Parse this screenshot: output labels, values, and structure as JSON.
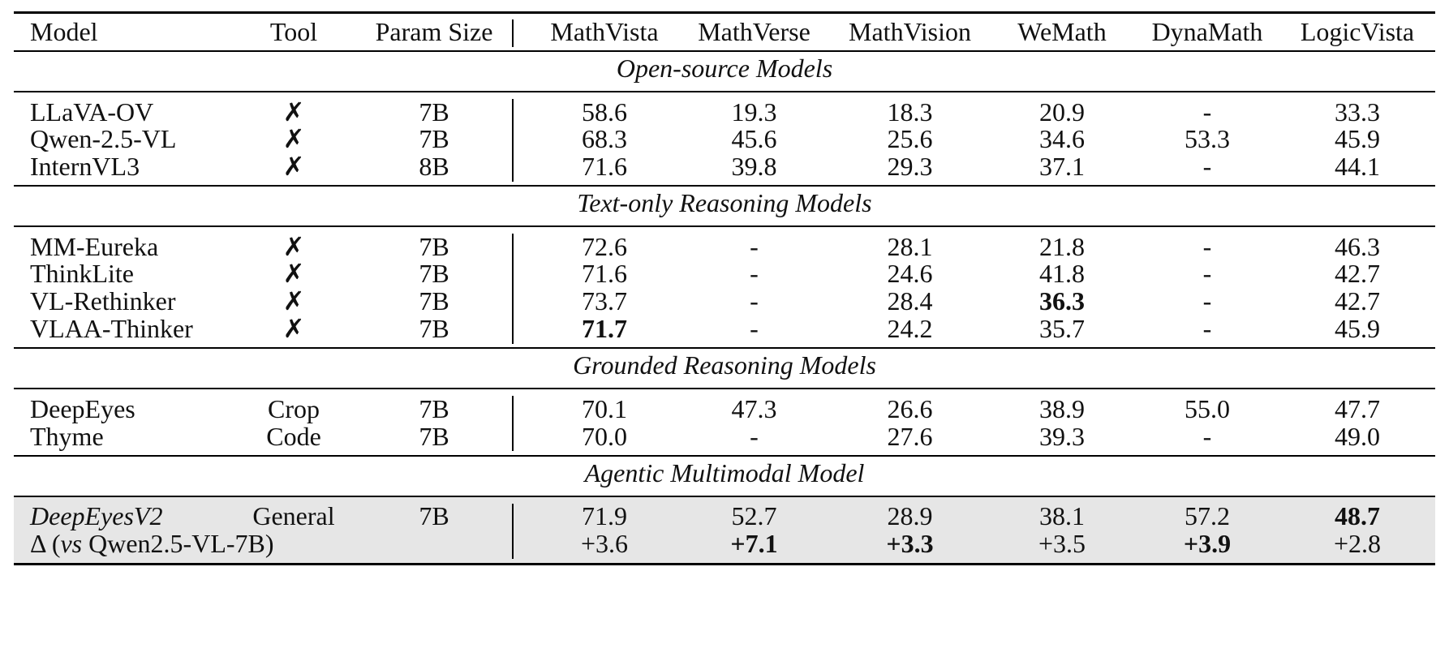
{
  "header": {
    "model": "Model",
    "tool": "Tool",
    "param": "Param Size",
    "mathvista": "MathVista",
    "mathverse": "MathVerse",
    "mathvision": "MathVision",
    "wemath": "WeMath",
    "dynamath": "DynaMath",
    "logicvista": "LogicVista"
  },
  "sections": [
    {
      "title": "Open-source Models",
      "rows": [
        {
          "model": "LLaVA-OV",
          "tool": "✗",
          "param": "7B",
          "mathvista": "58.6",
          "mathverse": "19.3",
          "mathvision": "18.3",
          "wemath": "20.9",
          "dynamath": "-",
          "logicvista": "33.3"
        },
        {
          "model": "Qwen-2.5-VL",
          "tool": "✗",
          "param": "7B",
          "mathvista": "68.3",
          "mathverse": "45.6",
          "mathvision": "25.6",
          "wemath": "34.6",
          "dynamath": "53.3",
          "logicvista": "45.9"
        },
        {
          "model": "InternVL3",
          "tool": "✗",
          "param": "8B",
          "mathvista": "71.6",
          "mathverse": "39.8",
          "mathvision": "29.3",
          "wemath": "37.1",
          "dynamath": "-",
          "logicvista": "44.1"
        }
      ]
    },
    {
      "title": "Text-only Reasoning Models",
      "rows": [
        {
          "model": "MM-Eureka",
          "tool": "✗",
          "param": "7B",
          "mathvista": "72.6",
          "mathverse": "-",
          "mathvision": "28.1",
          "wemath": "21.8",
          "dynamath": "-",
          "logicvista": "46.3"
        },
        {
          "model": "ThinkLite",
          "tool": "✗",
          "param": "7B",
          "mathvista": "71.6",
          "mathverse": "-",
          "mathvision": "24.6",
          "wemath": "41.8",
          "dynamath": "-",
          "logicvista": "42.7"
        },
        {
          "model": "VL-Rethinker",
          "tool": "✗",
          "param": "7B",
          "mathvista": "73.7",
          "mathverse": "-",
          "mathvision": "28.4",
          "wemath": "36.3",
          "dynamath": "-",
          "logicvista": "42.7"
        },
        {
          "model": "VLAA-Thinker",
          "tool": "✗",
          "param": "7B",
          "mathvista": "71.7",
          "mathverse": "-",
          "mathvision": "24.2",
          "wemath": "35.7",
          "dynamath": "-",
          "logicvista": "45.9"
        }
      ]
    },
    {
      "title": "Grounded Reasoning Models",
      "rows": [
        {
          "model": "DeepEyes",
          "tool": "Crop",
          "param": "7B",
          "mathvista": "70.1",
          "mathverse": "47.3",
          "mathvision": "26.6",
          "wemath": "38.9",
          "dynamath": "55.0",
          "logicvista": "47.7"
        },
        {
          "model": "Thyme",
          "tool": "Code",
          "param": "7B",
          "mathvista": "70.0",
          "mathverse": "-",
          "mathvision": "27.6",
          "wemath": "39.3",
          "dynamath": "-",
          "logicvista": "49.0"
        }
      ]
    },
    {
      "title": "Agentic Multimodal Model",
      "rows": [
        {
          "model": "DeepEyesV2",
          "tool": "General",
          "param": "7B",
          "mathvista": "71.9",
          "mathverse": "52.7",
          "mathvision": "28.9",
          "wemath": "38.1",
          "dynamath": "57.2",
          "logicvista": "48.7"
        },
        {
          "model": "Δ (vs Qwen2.5-VL-7B)",
          "tool": "",
          "param": "",
          "mathvista": "+3.6",
          "mathverse": "+7.1",
          "mathvision": "+3.3",
          "wemath": "+3.5",
          "dynamath": "+3.9",
          "logicvista": "+2.8"
        }
      ]
    }
  ],
  "bold_cells": [
    "6.mathvista",
    "5.wemath",
    "9.logicvista",
    "10.mathverse",
    "10.mathvision",
    "10.dynamath"
  ],
  "colors": {
    "highlight_row_bg": "#e6e6e6",
    "rule": "#000000"
  }
}
